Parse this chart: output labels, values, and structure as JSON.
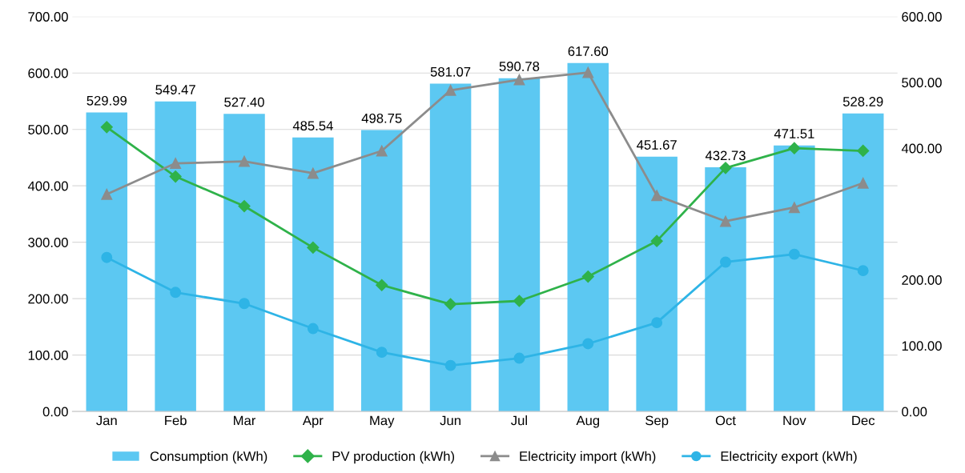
{
  "chart_data": {
    "type": "bar",
    "categories": [
      "Jan",
      "Feb",
      "Mar",
      "Apr",
      "May",
      "Jun",
      "Jul",
      "Aug",
      "Sep",
      "Oct",
      "Nov",
      "Dec"
    ],
    "series": [
      {
        "name": "Consumption (kWh)",
        "color": "#5cc8f2",
        "values": [
          529.99,
          549.47,
          527.4,
          485.54,
          498.75,
          581.07,
          590.78,
          617.6,
          451.67,
          432.73,
          471.51,
          528.29
        ],
        "value_labels": [
          "529.99",
          "549.47",
          "527.40",
          "485.54",
          "498.75",
          "581.07",
          "590.78",
          "617.60",
          "451.67",
          "432.73",
          "471.51",
          "528.29"
        ]
      },
      {
        "name": "PV production (kWh)",
        "type": "line",
        "axis": "y2",
        "color": "#2fb24a",
        "marker": "diamond",
        "values": [
          432,
          357,
          312,
          249,
          192,
          163,
          168,
          205,
          259,
          370,
          400,
          396
        ]
      },
      {
        "name": "Electricity import (kWh)",
        "type": "line",
        "axis": "y2",
        "color": "#8c8c8c",
        "marker": "triangle",
        "values": [
          330,
          377,
          380,
          362,
          396,
          488,
          504,
          515,
          328,
          289,
          310,
          347
        ]
      },
      {
        "name": "Electricity export (kWh)",
        "type": "line",
        "axis": "y2",
        "color": "#2eb4e6",
        "marker": "circle",
        "values": [
          234,
          181,
          164,
          126,
          90,
          70,
          81,
          103,
          135,
          227,
          239,
          214
        ]
      }
    ],
    "ylim": [
      0,
      700
    ],
    "yticks": [
      {
        "value": 0,
        "label": "0.00"
      },
      {
        "value": 100,
        "label": "100.00"
      },
      {
        "value": 200,
        "label": "200.00"
      },
      {
        "value": 300,
        "label": "300.00"
      },
      {
        "value": 400,
        "label": "400.00"
      },
      {
        "value": 500,
        "label": "500.00"
      },
      {
        "value": 600,
        "label": "600.00"
      },
      {
        "value": 700,
        "label": "700.00"
      }
    ],
    "y2lim": [
      0,
      600
    ],
    "y2ticks": [
      {
        "value": 0,
        "label": "0.00"
      },
      {
        "value": 100,
        "label": "100.00"
      },
      {
        "value": 200,
        "label": "200.00"
      },
      {
        "value": 400,
        "label": "400.00"
      },
      {
        "value": 500,
        "label": "500.00"
      },
      {
        "value": 600,
        "label": "600.00"
      }
    ],
    "grid": "y",
    "legend": "bottom",
    "line_style": "solid"
  }
}
